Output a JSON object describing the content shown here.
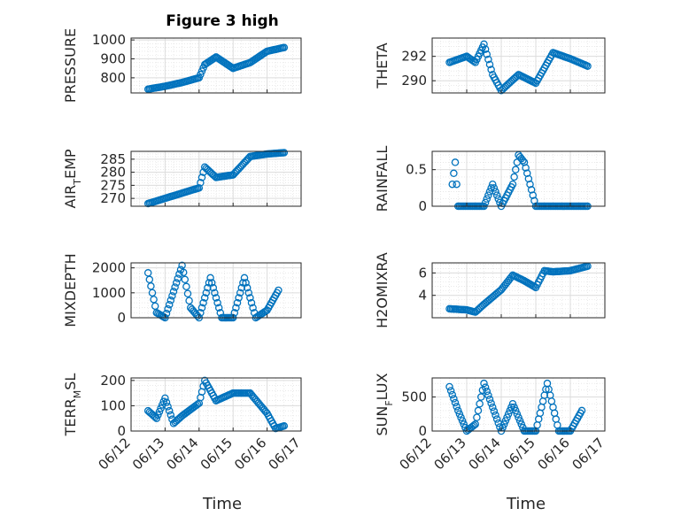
{
  "figure": {
    "title": "Figure 3 high",
    "xlabel": "Time",
    "colors": {
      "marker": "#0072BD",
      "grid": "#dcdcdc",
      "axis": "#262626"
    }
  },
  "chart_data": [
    {
      "id": "pressure",
      "type": "scatter",
      "marker": "circle",
      "ylabel": "PRESSURE",
      "ylim": [
        720,
        1010
      ],
      "yticks": [
        800,
        900,
        1000
      ],
      "xlim": [
        "06/12",
        "06/17"
      ],
      "xticks": [],
      "grid": true,
      "x": [
        "06/12 12:00",
        "06/13 00:00",
        "06/13 12:00",
        "06/14 00:00",
        "06/14 04:00",
        "06/14 12:00",
        "06/15 00:00",
        "06/15 12:00",
        "06/16 00:00",
        "06/16 12:00"
      ],
      "y": [
        740,
        755,
        775,
        800,
        870,
        910,
        850,
        880,
        940,
        960
      ]
    },
    {
      "id": "theta",
      "type": "scatter",
      "marker": "circle",
      "ylabel": "THETA",
      "ylim": [
        289.0,
        293.5
      ],
      "yticks": [
        290,
        292
      ],
      "xlim": [
        "06/12",
        "06/17"
      ],
      "xticks": [],
      "grid": true,
      "x": [
        "06/12 12:00",
        "06/13 00:00",
        "06/13 06:00",
        "06/13 12:00",
        "06/13 18:00",
        "06/14 00:00",
        "06/14 12:00",
        "06/15 00:00",
        "06/15 12:00",
        "06/16 00:00",
        "06/16 12:00"
      ],
      "y": [
        291.5,
        292.0,
        291.5,
        293.0,
        290.5,
        289.2,
        290.5,
        289.8,
        292.3,
        291.8,
        291.2
      ]
    },
    {
      "id": "air_temp",
      "type": "scatter",
      "marker": "circle",
      "ylabel": "AIR",
      "ylabel_sub": "T",
      "ylabel_rest": "EMP",
      "ylim": [
        267,
        288
      ],
      "yticks": [
        270,
        275,
        280,
        285
      ],
      "xlim": [
        "06/12",
        "06/17"
      ],
      "xticks": [],
      "grid": true,
      "x": [
        "06/12 12:00",
        "06/13 00:00",
        "06/13 12:00",
        "06/14 00:00",
        "06/14 04:00",
        "06/14 12:00",
        "06/15 00:00",
        "06/15 12:00",
        "06/16 00:00",
        "06/16 12:00"
      ],
      "y": [
        268,
        270,
        272,
        274,
        282,
        278,
        279,
        286,
        287,
        287.5
      ]
    },
    {
      "id": "rainfall",
      "type": "scatter",
      "marker": "circle",
      "ylabel": "RAINFALL",
      "ylim": [
        0,
        0.75
      ],
      "yticks": [
        0,
        0.5
      ],
      "xlim": [
        "06/12",
        "06/17"
      ],
      "xticks": [],
      "grid": true,
      "x": [
        "06/12 14:00",
        "06/12 16:00",
        "06/12 18:00",
        "06/13 12:00",
        "06/13 18:00",
        "06/14 00:00",
        "06/14 08:00",
        "06/14 12:00",
        "06/14 16:00",
        "06/15 00:00",
        "06/15 06:00",
        "06/15 12:00",
        "06/16 00:00",
        "06/16 12:00"
      ],
      "y": [
        0.3,
        0.6,
        0.0,
        0.0,
        0.3,
        0.0,
        0.3,
        0.7,
        0.6,
        0.0,
        0.0,
        0.0,
        0.0,
        0.0
      ]
    },
    {
      "id": "mixdepth",
      "type": "scatter",
      "marker": "circle",
      "ylabel": "MIXDEPTH",
      "ylim": [
        0,
        2200
      ],
      "yticks": [
        0,
        1000,
        2000
      ],
      "xlim": [
        "06/12",
        "06/17"
      ],
      "xticks": [],
      "grid": true,
      "x": [
        "06/12 12:00",
        "06/12 18:00",
        "06/13 00:00",
        "06/13 12:00",
        "06/13 18:00",
        "06/14 00:00",
        "06/14 08:00",
        "06/14 16:00",
        "06/15 00:00",
        "06/15 08:00",
        "06/15 16:00",
        "06/16 00:00",
        "06/16 08:00"
      ],
      "y": [
        1800,
        200,
        0,
        2100,
        400,
        0,
        1600,
        0,
        0,
        1600,
        0,
        300,
        1100
      ]
    },
    {
      "id": "h2omixra",
      "type": "scatter",
      "marker": "circle",
      "ylabel": "H2OMIXRA",
      "ylim": [
        2.0,
        6.9
      ],
      "yticks": [
        4,
        6
      ],
      "xlim": [
        "06/12",
        "06/17"
      ],
      "xticks": [],
      "grid": true,
      "x": [
        "06/12 12:00",
        "06/13 00:00",
        "06/13 06:00",
        "06/13 12:00",
        "06/14 00:00",
        "06/14 08:00",
        "06/14 16:00",
        "06/15 00:00",
        "06/15 06:00",
        "06/15 12:00",
        "06/16 00:00",
        "06/16 12:00"
      ],
      "y": [
        2.8,
        2.7,
        2.5,
        3.2,
        4.5,
        5.8,
        5.3,
        4.7,
        6.2,
        6.1,
        6.2,
        6.6
      ]
    },
    {
      "id": "terr_msl",
      "type": "scatter",
      "marker": "circle",
      "ylabel": "TERR",
      "ylabel_sub": "M",
      "ylabel_rest": "SL",
      "ylim": [
        0,
        210
      ],
      "yticks": [
        0,
        100,
        200
      ],
      "xlim": [
        "06/12",
        "06/17"
      ],
      "xticks": [
        "06/12",
        "06/13",
        "06/14",
        "06/15",
        "06/16",
        "06/17"
      ],
      "grid": true,
      "x": [
        "06/12 12:00",
        "06/12 18:00",
        "06/13 00:00",
        "06/13 06:00",
        "06/13 12:00",
        "06/14 00:00",
        "06/14 04:00",
        "06/14 12:00",
        "06/15 00:00",
        "06/15 12:00",
        "06/16 00:00",
        "06/16 06:00",
        "06/16 12:00"
      ],
      "y": [
        80,
        50,
        130,
        30,
        60,
        110,
        200,
        120,
        150,
        150,
        70,
        10,
        20
      ]
    },
    {
      "id": "sun_flux",
      "type": "scatter",
      "marker": "circle",
      "ylabel": "SUN",
      "ylabel_sub": "F",
      "ylabel_rest": "LUX",
      "ylim": [
        0,
        780
      ],
      "yticks": [
        0,
        500
      ],
      "xlim": [
        "06/12",
        "06/17"
      ],
      "xticks": [
        "06/12",
        "06/13",
        "06/14",
        "06/15",
        "06/16",
        "06/17"
      ],
      "grid": true,
      "x": [
        "06/12 12:00",
        "06/12 18:00",
        "06/13 00:00",
        "06/13 06:00",
        "06/13 12:00",
        "06/14 00:00",
        "06/14 08:00",
        "06/14 16:00",
        "06/15 00:00",
        "06/15 08:00",
        "06/15 16:00",
        "06/16 00:00",
        "06/16 08:00"
      ],
      "y": [
        650,
        300,
        0,
        100,
        700,
        0,
        400,
        0,
        0,
        700,
        0,
        0,
        300
      ]
    }
  ]
}
